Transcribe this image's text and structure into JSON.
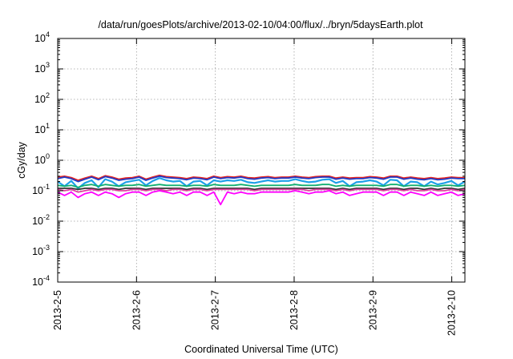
{
  "chart_data": {
    "type": "line",
    "title": "/data/run/goesPlots/archive/2013-02-10/04:00/flux/../bryn/5daysEarth.plot",
    "xlabel": "Coordinated Universal Time (UTC)",
    "ylabel": "cGy/day",
    "yscale": "log",
    "ylim": [
      0.0001,
      10000
    ],
    "y_ticks": [
      {
        "exp": -4,
        "label_base": "10",
        "label_exp": "-4"
      },
      {
        "exp": -3,
        "label_base": "10",
        "label_exp": "-3"
      },
      {
        "exp": -2,
        "label_base": "10",
        "label_exp": "-2"
      },
      {
        "exp": -1,
        "label_base": "10",
        "label_exp": "-1"
      },
      {
        "exp": 0,
        "label_base": "10",
        "label_exp": "0"
      },
      {
        "exp": 1,
        "label_base": "10",
        "label_exp": "1"
      },
      {
        "exp": 2,
        "label_base": "10",
        "label_exp": "2"
      },
      {
        "exp": 3,
        "label_base": "10",
        "label_exp": "3"
      },
      {
        "exp": 4,
        "label_base": "10",
        "label_exp": "4"
      }
    ],
    "xlim": [
      "2013-02-05T00:00",
      "2013-02-10T04:00"
    ],
    "x_ticks": [
      {
        "at": "2013-02-05T00:00",
        "label": "2013-2-5"
      },
      {
        "at": "2013-02-06T00:00",
        "label": "2013-2-6"
      },
      {
        "at": "2013-02-07T00:00",
        "label": "2013-2-7"
      },
      {
        "at": "2013-02-08T00:00",
        "label": "2013-2-8"
      },
      {
        "at": "2013-02-09T00:00",
        "label": "2013-2-9"
      },
      {
        "at": "2013-02-10T00:00",
        "label": "2013-2-10"
      }
    ],
    "grid": true,
    "series": [
      {
        "color": "#e8221f",
        "base": 0.27,
        "values": [
          0.28,
          0.3,
          0.27,
          0.22,
          0.26,
          0.3,
          0.25,
          0.31,
          0.28,
          0.24,
          0.26,
          0.27,
          0.3,
          0.24,
          0.28,
          0.32,
          0.29,
          0.28,
          0.27,
          0.25,
          0.28,
          0.27,
          0.25,
          0.3,
          0.27,
          0.29,
          0.28,
          0.3,
          0.27,
          0.26,
          0.28,
          0.29,
          0.27,
          0.28,
          0.28,
          0.3,
          0.28,
          0.27,
          0.29,
          0.3,
          0.3,
          0.26,
          0.28,
          0.26,
          0.27,
          0.27,
          0.29,
          0.28,
          0.26,
          0.3,
          0.3,
          0.26,
          0.28,
          0.26,
          0.25,
          0.27,
          0.25,
          0.26,
          0.28,
          0.27,
          0.27
        ]
      },
      {
        "color": "#1f3cc8",
        "base": 0.25,
        "values": [
          0.25,
          0.28,
          0.25,
          0.2,
          0.24,
          0.28,
          0.23,
          0.29,
          0.26,
          0.22,
          0.24,
          0.25,
          0.28,
          0.22,
          0.26,
          0.3,
          0.27,
          0.26,
          0.25,
          0.23,
          0.26,
          0.25,
          0.23,
          0.28,
          0.25,
          0.27,
          0.26,
          0.28,
          0.25,
          0.24,
          0.26,
          0.27,
          0.25,
          0.26,
          0.26,
          0.28,
          0.26,
          0.25,
          0.27,
          0.28,
          0.28,
          0.24,
          0.26,
          0.24,
          0.25,
          0.25,
          0.27,
          0.26,
          0.24,
          0.28,
          0.28,
          0.24,
          0.26,
          0.24,
          0.23,
          0.25,
          0.23,
          0.24,
          0.26,
          0.25,
          0.25
        ]
      },
      {
        "color": "#1ea0e8",
        "base": 0.2,
        "values": [
          0.2,
          0.14,
          0.21,
          0.12,
          0.18,
          0.22,
          0.13,
          0.24,
          0.2,
          0.14,
          0.19,
          0.21,
          0.23,
          0.15,
          0.21,
          0.26,
          0.22,
          0.2,
          0.21,
          0.14,
          0.2,
          0.21,
          0.15,
          0.22,
          0.2,
          0.22,
          0.21,
          0.23,
          0.19,
          0.18,
          0.2,
          0.22,
          0.2,
          0.21,
          0.21,
          0.24,
          0.21,
          0.19,
          0.2,
          0.23,
          0.24,
          0.18,
          0.21,
          0.14,
          0.19,
          0.2,
          0.22,
          0.2,
          0.15,
          0.23,
          0.22,
          0.14,
          0.2,
          0.19,
          0.14,
          0.2,
          0.16,
          0.18,
          0.21,
          0.15,
          0.2
        ]
      },
      {
        "color": "#10b070",
        "base": 0.15,
        "values": [
          0.15,
          0.14,
          0.15,
          0.13,
          0.15,
          0.16,
          0.14,
          0.16,
          0.15,
          0.14,
          0.15,
          0.15,
          0.16,
          0.14,
          0.15,
          0.16,
          0.15,
          0.15,
          0.15,
          0.14,
          0.15,
          0.15,
          0.14,
          0.16,
          0.15,
          0.15,
          0.15,
          0.16,
          0.15,
          0.14,
          0.15,
          0.15,
          0.15,
          0.15,
          0.15,
          0.16,
          0.15,
          0.15,
          0.15,
          0.16,
          0.16,
          0.14,
          0.15,
          0.14,
          0.15,
          0.15,
          0.15,
          0.15,
          0.14,
          0.16,
          0.16,
          0.14,
          0.15,
          0.15,
          0.14,
          0.15,
          0.14,
          0.15,
          0.15,
          0.14,
          0.15
        ]
      },
      {
        "color": "#333333",
        "base": 0.12,
        "values": [
          0.12,
          0.12,
          0.12,
          0.11,
          0.12,
          0.12,
          0.11,
          0.12,
          0.12,
          0.11,
          0.12,
          0.12,
          0.12,
          0.11,
          0.12,
          0.12,
          0.12,
          0.12,
          0.12,
          0.11,
          0.12,
          0.12,
          0.11,
          0.12,
          0.12,
          0.12,
          0.12,
          0.12,
          0.12,
          0.11,
          0.12,
          0.12,
          0.12,
          0.12,
          0.12,
          0.12,
          0.12,
          0.12,
          0.12,
          0.12,
          0.12,
          0.11,
          0.12,
          0.11,
          0.12,
          0.12,
          0.12,
          0.12,
          0.11,
          0.12,
          0.12,
          0.11,
          0.12,
          0.12,
          0.11,
          0.12,
          0.11,
          0.12,
          0.12,
          0.11,
          0.12
        ]
      },
      {
        "color": "#e040a0",
        "base": 0.11,
        "values": [
          0.11,
          0.1,
          0.11,
          0.09,
          0.1,
          0.11,
          0.1,
          0.11,
          0.11,
          0.1,
          0.1,
          0.11,
          0.11,
          0.1,
          0.11,
          0.11,
          0.1,
          0.11,
          0.11,
          0.1,
          0.11,
          0.11,
          0.1,
          0.11,
          0.11,
          0.11,
          0.11,
          0.11,
          0.11,
          0.1,
          0.11,
          0.11,
          0.11,
          0.11,
          0.11,
          0.11,
          0.11,
          0.1,
          0.11,
          0.11,
          0.11,
          0.1,
          0.11,
          0.1,
          0.11,
          0.11,
          0.11,
          0.11,
          0.1,
          0.11,
          0.11,
          0.1,
          0.11,
          0.1,
          0.1,
          0.11,
          0.1,
          0.1,
          0.11,
          0.1,
          0.11
        ]
      },
      {
        "color": "#ff00ff",
        "base": 0.09,
        "values": [
          0.09,
          0.07,
          0.09,
          0.06,
          0.08,
          0.09,
          0.07,
          0.09,
          0.08,
          0.06,
          0.08,
          0.09,
          0.09,
          0.07,
          0.09,
          0.1,
          0.09,
          0.08,
          0.09,
          0.07,
          0.09,
          0.09,
          0.07,
          0.09,
          0.035,
          0.09,
          0.08,
          0.09,
          0.08,
          0.08,
          0.09,
          0.09,
          0.09,
          0.09,
          0.09,
          0.1,
          0.09,
          0.08,
          0.09,
          0.09,
          0.1,
          0.08,
          0.09,
          0.07,
          0.08,
          0.09,
          0.09,
          0.09,
          0.07,
          0.09,
          0.09,
          0.07,
          0.09,
          0.08,
          0.07,
          0.09,
          0.07,
          0.08,
          0.09,
          0.07,
          0.08
        ]
      }
    ]
  }
}
